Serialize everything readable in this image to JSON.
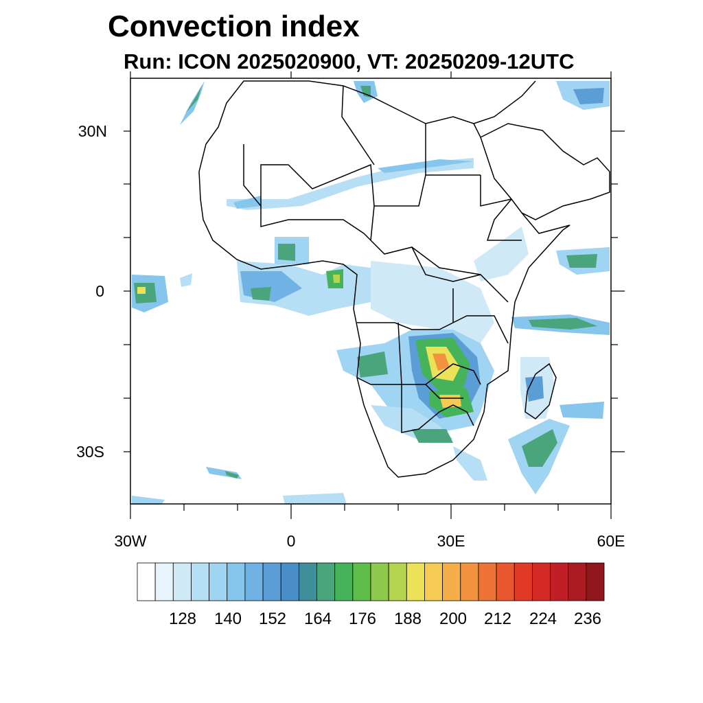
{
  "header": {
    "title": "Convection index",
    "subtitle": "Run: ICON 2025020900,  VT: 20250209-12UTC"
  },
  "axes": {
    "lat_labels": [
      "30N",
      "0",
      "30S"
    ],
    "lon_labels": [
      "30W",
      "0",
      "30E",
      "60E"
    ]
  },
  "colorbar": {
    "labels": [
      "128",
      "140",
      "152",
      "164",
      "176",
      "188",
      "200",
      "212",
      "224",
      "236"
    ],
    "colors": [
      "#ffffff",
      "#e8f4fb",
      "#cfe9f7",
      "#b6def5",
      "#9fd4f2",
      "#86c5ec",
      "#6fb2e3",
      "#5b9ed6",
      "#4a8ec8",
      "#3f8f9a",
      "#4aa57c",
      "#45b35a",
      "#5fbd4a",
      "#8fc94c",
      "#b5d551",
      "#ebe257",
      "#f6cb54",
      "#f5ae49",
      "#f39340",
      "#ee7336",
      "#e8572d",
      "#e23a27",
      "#d42a26",
      "#c11f27",
      "#ab1b22",
      "#8f161b"
    ]
  },
  "map_colors": {
    "frame": "#000000",
    "land_border": "#000000"
  }
}
